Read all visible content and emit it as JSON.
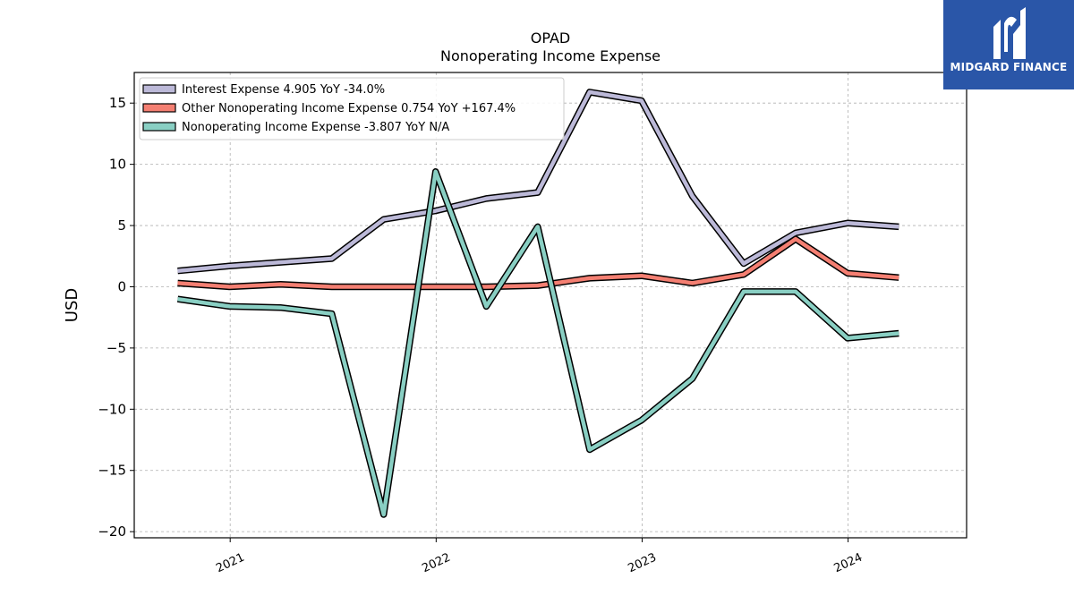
{
  "colors": {
    "interest": "#bcb9d8",
    "other": "#f47f72",
    "nonop": "#89cfc3",
    "brand": "#2a56a8"
  },
  "brand": {
    "name": "MIDGARD FINANCE",
    "icon": "midgard-logo-icon"
  },
  "chart_data": {
    "type": "line",
    "title": "OPAD",
    "subtitle": "Nonoperating Income Expense",
    "ylabel": "USD",
    "xlabel": "",
    "ylim": [
      -20.5,
      17.5
    ],
    "yticks": [
      15,
      10,
      5,
      0,
      -5,
      -10,
      -15,
      -20
    ],
    "ytick_labels": [
      "15",
      "10",
      "5",
      "0",
      "−5",
      "−10",
      "−15",
      "−20"
    ],
    "xlim": [
      "2020-07-15",
      "2024-07-29"
    ],
    "xticks": [
      "2021-01-01",
      "2022-01-01",
      "2023-01-01",
      "2024-01-01"
    ],
    "xtick_labels": [
      "2021",
      "2022",
      "2023",
      "2024"
    ],
    "grid": true,
    "legend_position": "top-left",
    "x": [
      "2020-09-30",
      "2020-12-31",
      "2021-03-31",
      "2021-06-30",
      "2021-09-30",
      "2021-12-31",
      "2022-03-31",
      "2022-06-30",
      "2022-09-30",
      "2022-12-31",
      "2023-03-31",
      "2023-06-30",
      "2023-09-30",
      "2023-12-31",
      "2024-03-31"
    ],
    "series": [
      {
        "name": "Interest Expense",
        "legend": "Interest Expense  4.905 YoY -34.0%",
        "color_key": "interest",
        "values": [
          1.3,
          1.7,
          2.0,
          2.3,
          5.5,
          6.2,
          7.2,
          7.7,
          15.9,
          15.2,
          7.4,
          1.9,
          4.4,
          5.2,
          4.9
        ]
      },
      {
        "name": "Other Nonoperating Income Expense",
        "legend": "Other Nonoperating Income Expense  0.754 YoY +167.4%",
        "color_key": "other",
        "values": [
          0.3,
          0.0,
          0.2,
          0.0,
          0.0,
          0.0,
          0.0,
          0.1,
          0.7,
          0.9,
          0.3,
          1.0,
          3.9,
          1.1,
          0.75
        ]
      },
      {
        "name": "Nonoperating Income Expense",
        "legend": "Nonoperating Income Expense  -3.807 YoY N/A",
        "color_key": "nonop",
        "values": [
          -1.0,
          -1.6,
          -1.7,
          -2.2,
          -18.6,
          9.4,
          -1.6,
          4.9,
          -13.3,
          -10.9,
          -7.5,
          -0.4,
          -0.4,
          -4.2,
          -3.8
        ]
      }
    ]
  }
}
